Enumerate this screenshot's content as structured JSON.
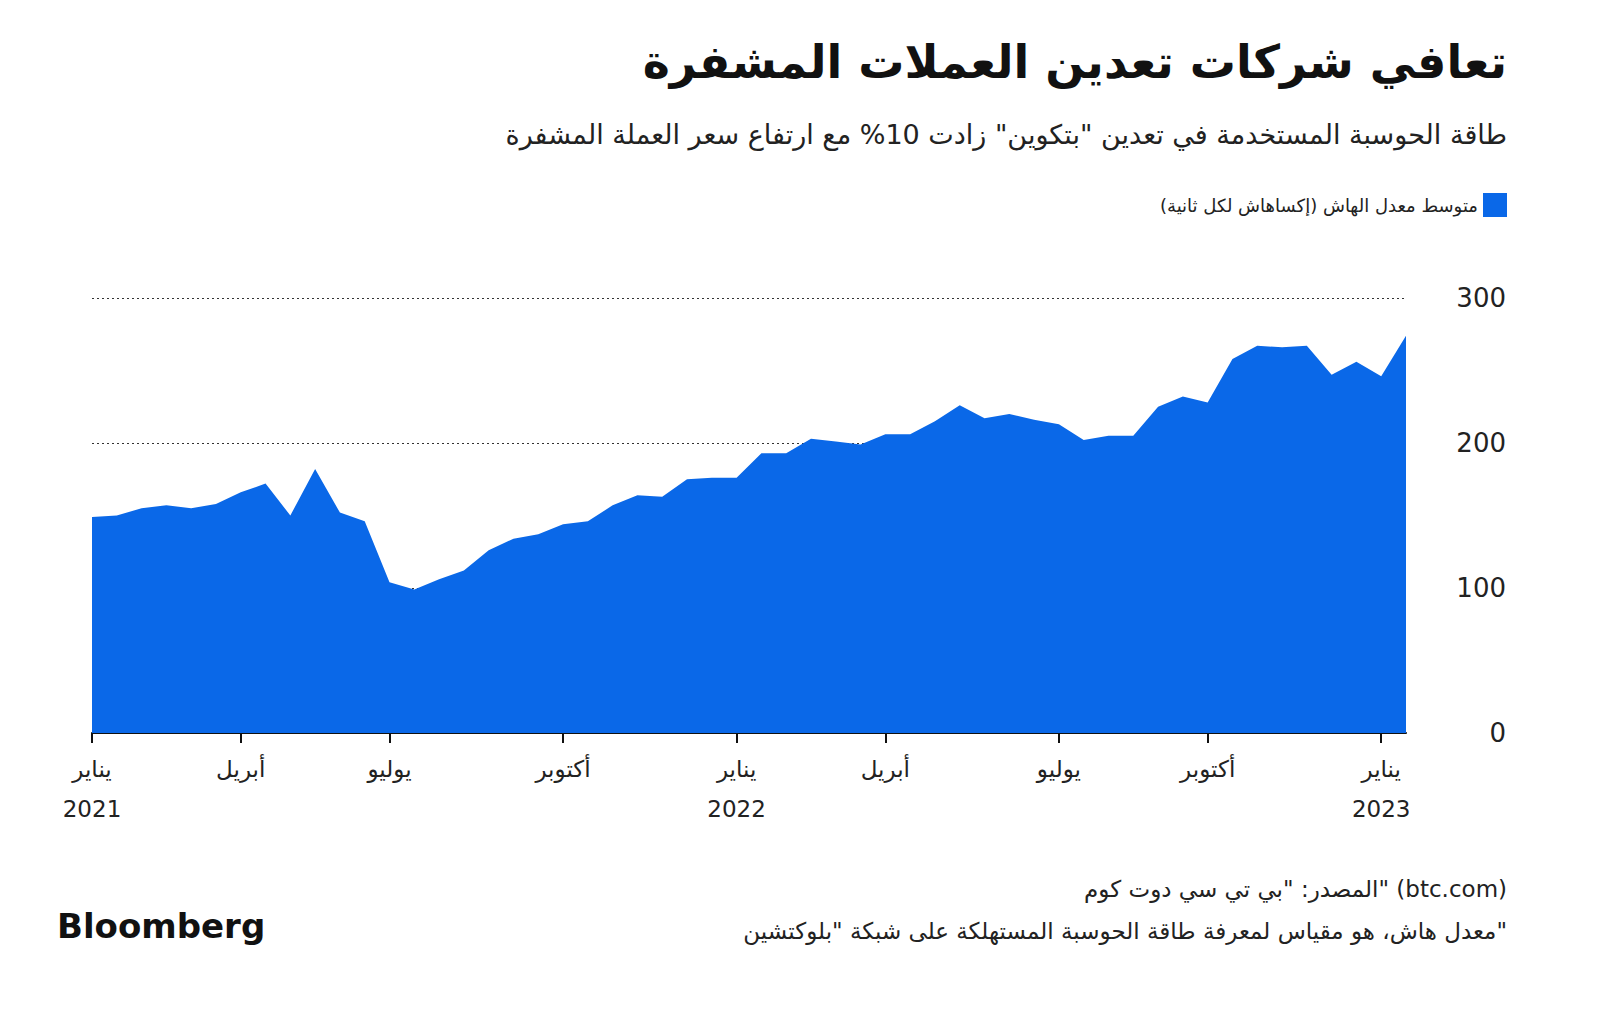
{
  "chart_data": {
    "type": "area",
    "title": "تعافي شركات تعدين العملات المشفرة",
    "subtitle": "طاقة الحوسبة المستخدمة في تعدين \"بتكوين\" زادت 10% مع ارتفاع سعر العملة المشفرة",
    "source": "المصدر: \"بي تي سي دوت كوم\" (btc.com)",
    "note": "معدل هاش، هو مقياس لمعرفة طاقة الحوسبة المستهلكة على شبكة \"بلوكتشين\"",
    "credit": "Bloomberg",
    "categories": [
      "يناير\n2021",
      null,
      null,
      null,
      null,
      null,
      "أبريل",
      null,
      null,
      null,
      null,
      null,
      "يوليو",
      null,
      null,
      null,
      null,
      null,
      null,
      "أكتوبر",
      null,
      null,
      null,
      null,
      null,
      null,
      "يناير\n2022",
      null,
      null,
      null,
      null,
      null,
      "أبريل",
      null,
      null,
      null,
      null,
      null,
      null,
      "يوليو",
      null,
      null,
      null,
      null,
      null,
      "أكتوبر",
      null,
      null,
      null,
      null,
      null,
      null,
      "يناير\n2023",
      null
    ],
    "series": [
      {
        "name": "متوسط معدل الهاش (إكساهاش لكل ثانية)",
        "color": "#0a68e8",
        "values": [
          149,
          150,
          155,
          157,
          155,
          158,
          166,
          172,
          150,
          182,
          152,
          146,
          104,
          99,
          106,
          112,
          126,
          134,
          137,
          144,
          146,
          157,
          164,
          163,
          175,
          176,
          176,
          193,
          193,
          203,
          201,
          199,
          206,
          206,
          215,
          226,
          217,
          220,
          216,
          213,
          202,
          205,
          205,
          225,
          232,
          228,
          258,
          267,
          266,
          267,
          247,
          256,
          246,
          274
        ]
      }
    ],
    "ylim": [
      0,
      300
    ],
    "yticks": [
      0,
      100,
      200,
      300
    ],
    "grid": true,
    "legend": "top-right"
  }
}
